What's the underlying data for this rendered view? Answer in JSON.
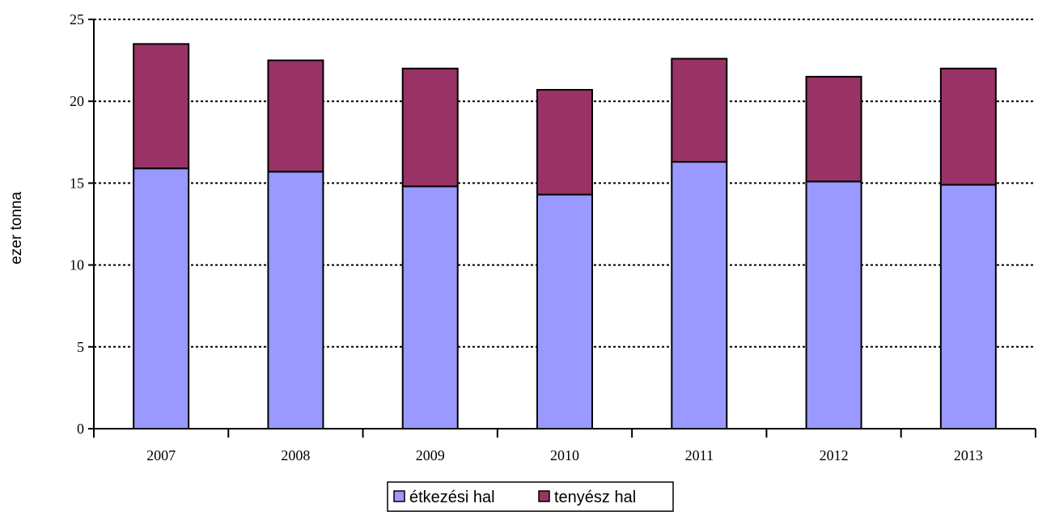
{
  "chart_data": {
    "type": "bar",
    "stacked": true,
    "title": "",
    "xlabel": "",
    "ylabel": "ezer tonna",
    "categories": [
      "2007",
      "2008",
      "2009",
      "2010",
      "2011",
      "2012",
      "2013"
    ],
    "series": [
      {
        "name": "étkezési hal",
        "color": "#9999ff",
        "values": [
          15.9,
          15.7,
          14.8,
          14.3,
          16.3,
          15.1,
          14.9
        ]
      },
      {
        "name": "tenyész hal",
        "color": "#993366",
        "values": [
          7.6,
          6.8,
          7.2,
          6.4,
          6.3,
          6.4,
          7.1
        ]
      }
    ],
    "ylim": [
      0,
      25
    ],
    "yticks": [
      0,
      5,
      10,
      15,
      20,
      25
    ],
    "grid": "horizontal dotted",
    "legend_position": "bottom"
  }
}
